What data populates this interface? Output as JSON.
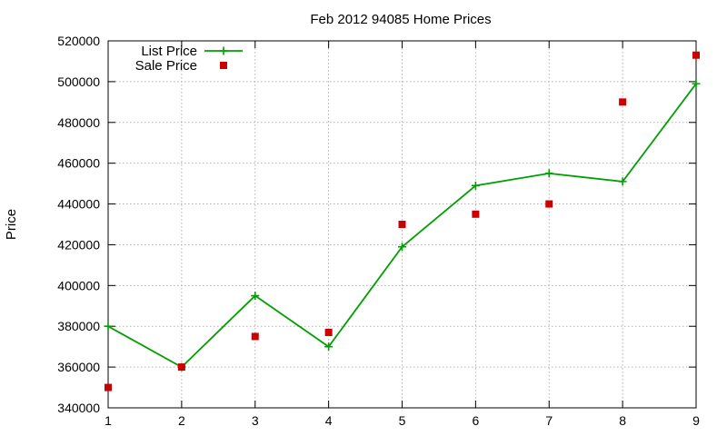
{
  "chart_data": {
    "type": "line",
    "title": "Feb 2012 94085 Home Prices",
    "xlabel": "",
    "ylabel": "Price",
    "x": [
      1,
      2,
      3,
      4,
      5,
      6,
      7,
      8,
      9
    ],
    "xlim": [
      1,
      9
    ],
    "ylim": [
      340000,
      520000
    ],
    "yticks": [
      340000,
      360000,
      380000,
      400000,
      420000,
      440000,
      460000,
      480000,
      500000,
      520000
    ],
    "grid": true,
    "legend_position": "top-left",
    "series": [
      {
        "name": "List Price",
        "style": "line-with-plus-markers",
        "color": "#00a000",
        "values": [
          380000,
          360000,
          395000,
          370000,
          419000,
          449000,
          455000,
          451000,
          499000
        ]
      },
      {
        "name": "Sale Price",
        "style": "square-points",
        "color": "#cc0000",
        "values": [
          350000,
          360000,
          375000,
          377000,
          430000,
          435000,
          440000,
          490000,
          513000
        ]
      }
    ]
  }
}
